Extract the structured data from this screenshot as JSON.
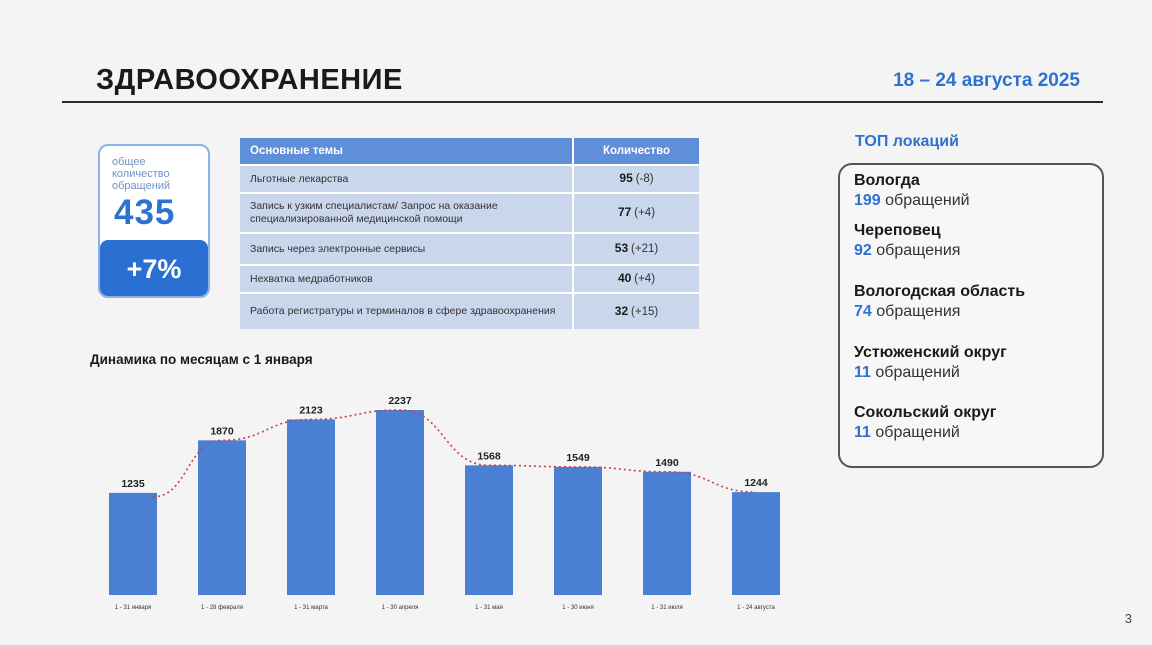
{
  "header": {
    "title": "ЗДРАВООХРАНЕНИЕ",
    "date": "18 – 24 августа 2025"
  },
  "total": {
    "label": "общее количество обращений",
    "value": "435",
    "change": "+7%"
  },
  "topics": {
    "col_theme": "Основные темы",
    "col_count": "Количество",
    "rows": [
      {
        "theme": "Льготные лекарства",
        "count": "95",
        "change": "(-8)"
      },
      {
        "theme": "Запись к узким специалистам/ Запрос на оказание специализированной медицинской помощи",
        "count": "77",
        "change": "(+4)"
      },
      {
        "theme": "Запись через электронные сервисы",
        "count": "53",
        "change": "(+21)"
      },
      {
        "theme": "Нехватка медработников",
        "count": "40",
        "change": "(+4)"
      },
      {
        "theme": "Работа регистратуры и терминалов в сфере здравоохранения",
        "count": "32",
        "change": "(+15)"
      }
    ]
  },
  "chart_title": "Динамика по месяцам с 1 января",
  "chart_data": {
    "type": "bar",
    "categories": [
      "1 - 31 января",
      "1 - 28 февраля",
      "1 - 31 марта",
      "1 - 30 апреля",
      "1 - 31 мая",
      "1 - 30 июня",
      "1 - 31 июля",
      "1 - 24 августа"
    ],
    "values": [
      1235,
      1870,
      2123,
      2237,
      1568,
      1549,
      1490,
      1244
    ],
    "trendline": true,
    "bar_color": "#4a80d3",
    "trend_color": "#d23b3b"
  },
  "locations": {
    "title": "ТОП локаций",
    "items": [
      {
        "name": "Вологда",
        "count": "199",
        "suffix": "обращений"
      },
      {
        "name": "Череповец",
        "count": "92",
        "suffix": "обращения"
      },
      {
        "name": "Вологодская область",
        "count": "74",
        "suffix": "обращения"
      },
      {
        "name": "Устюженский округ",
        "count": "11",
        "suffix": "обращений"
      },
      {
        "name": "Сокольский округ",
        "count": "11",
        "suffix": "обращений"
      }
    ]
  },
  "page_number": "3"
}
